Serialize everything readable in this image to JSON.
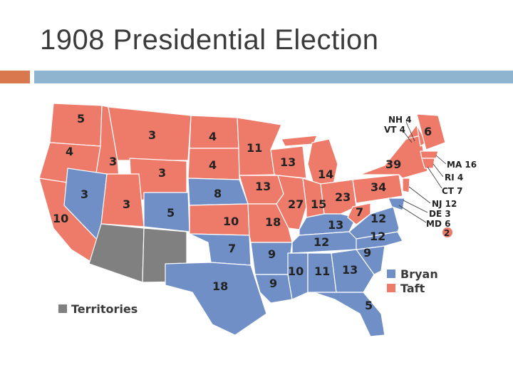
{
  "slide": {
    "title": "1908 Presidential Election",
    "accent_orange": "#d9784e",
    "accent_blue": "#8fb4cf"
  },
  "colors": {
    "bryan": "#6f8fc6",
    "taft": "#ee7a6a",
    "territories": "#808080"
  },
  "legend": {
    "bryan": "Bryan",
    "taft": "Taft",
    "territories": "Territories"
  },
  "states": {
    "wa": "5",
    "or": "4",
    "ca": "10",
    "id": "3",
    "nv": "3",
    "ut": "3",
    "mt": "3",
    "wy": "3",
    "co": "5",
    "nd": "4",
    "sd": "4",
    "ne": "8",
    "ks": "10",
    "ok": "7",
    "tx": "18",
    "mn": "11",
    "ia": "13",
    "mo": "18",
    "ar": "9",
    "la": "9",
    "wi": "13",
    "il": "27",
    "mi": "14",
    "in": "15",
    "oh": "23",
    "ky": "13",
    "tn": "12",
    "ms": "10",
    "al": "11",
    "ga": "13",
    "fl": "5",
    "sc": "9",
    "nc": "12",
    "va": "12",
    "wv": "7",
    "pa": "34",
    "ny": "39",
    "me": "6",
    "md_dot": "2"
  },
  "callouts": {
    "nh": "NH 4",
    "vt": "VT 4",
    "ma": "MA 16",
    "ri": "RI 4",
    "ct": "CT 7",
    "nj": "NJ 12",
    "de": "DE 3",
    "md": "MD 6"
  }
}
